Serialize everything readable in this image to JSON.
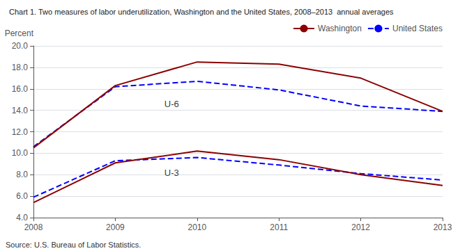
{
  "chart_data": {
    "type": "line",
    "title": "Chart 1. Two measures of labor underutilization, Washington and the United States, 2008–2013  annual averages",
    "ylabel": "Percent",
    "source": "Source: U.S. Bureau of Labor Statistics.",
    "x": [
      2008,
      2009,
      2010,
      2011,
      2012,
      2013
    ],
    "xlim": [
      2008,
      2013
    ],
    "xticks": [
      2008,
      2009,
      2010,
      2011,
      2012,
      2013
    ],
    "ylim": [
      4.0,
      20.0
    ],
    "yticks": [
      {
        "value": 4.0,
        "label": "4.0"
      },
      {
        "value": 6.0,
        "label": "6.0"
      },
      {
        "value": 8.0,
        "label": "8.0"
      },
      {
        "value": 10.0,
        "label": "10.0"
      },
      {
        "value": 12.0,
        "label": "12.0"
      },
      {
        "value": 14.0,
        "label": "14.0"
      },
      {
        "value": 16.0,
        "label": "16.0"
      },
      {
        "value": 18.0,
        "label": "18.0"
      },
      {
        "value": 20.0,
        "label": "20.0"
      }
    ],
    "grid": true,
    "legend": "upper right",
    "series": [
      {
        "name": "Washington",
        "color": "#8B0000",
        "line_style": "solid",
        "values": [
          10.5,
          16.3,
          18.5,
          18.3,
          17.0,
          13.9
        ]
      },
      {
        "name": "United States",
        "color": "#0000FF",
        "line_style": "dashed",
        "values": [
          10.6,
          16.2,
          16.7,
          15.9,
          14.4,
          13.9
        ]
      },
      {
        "color": "#8B0000",
        "line_style": "solid",
        "values": [
          5.4,
          9.1,
          10.2,
          9.4,
          8.0,
          7.0
        ]
      },
      {
        "color": "#0000FF",
        "line_style": "dashed",
        "values": [
          5.9,
          9.3,
          9.6,
          8.9,
          8.1,
          7.5
        ]
      }
    ],
    "annotations": [
      {
        "text": "U-6",
        "x": 2009.6,
        "y": 14.6
      },
      {
        "text": "U-3",
        "x": 2009.6,
        "y": 8.15
      }
    ]
  }
}
